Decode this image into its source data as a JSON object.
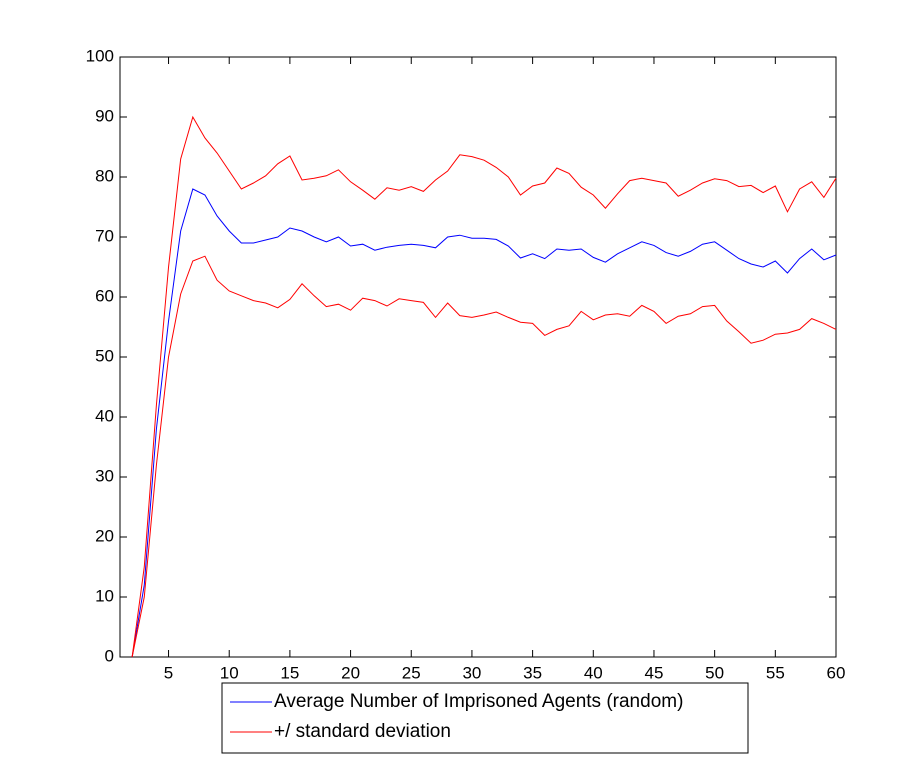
{
  "chart_data": {
    "type": "line",
    "x": [
      2,
      3,
      4,
      5,
      6,
      7,
      8,
      9,
      10,
      11,
      12,
      13,
      14,
      15,
      16,
      17,
      18,
      19,
      20,
      21,
      22,
      23,
      24,
      25,
      26,
      27,
      28,
      29,
      30,
      31,
      32,
      33,
      34,
      35,
      36,
      37,
      38,
      39,
      40,
      41,
      42,
      43,
      44,
      45,
      46,
      47,
      48,
      49,
      50,
      51,
      52,
      53,
      54,
      55,
      56,
      57,
      58,
      59,
      60
    ],
    "series": [
      {
        "name": "Average Number of Imprisoned Agents (random)",
        "color": "#0000ff",
        "values": [
          0,
          12,
          38,
          56,
          71,
          78,
          77,
          73.5,
          71,
          69,
          69,
          69.5,
          70,
          71.5,
          71,
          70,
          69.2,
          70,
          68.5,
          68.8,
          67.8,
          68.3,
          68.6,
          68.8,
          68.6,
          68.2,
          70,
          70.3,
          69.8,
          69.8,
          69.6,
          68.5,
          66.5,
          67.2,
          66.4,
          68,
          67.8,
          68,
          66.6,
          65.8,
          67.2,
          68.2,
          69.2,
          68.6,
          67.4,
          66.8,
          67.6,
          68.8,
          69.2,
          67.8,
          66.4,
          65.5,
          65,
          66,
          64,
          66.4,
          68,
          66.2,
          67
        ]
      },
      {
        "name": "+/  standard deviation",
        "color": "#ff0000",
        "upper": [
          0,
          15,
          42,
          65,
          83,
          90,
          86.5,
          84,
          81,
          78,
          79,
          80.2,
          82.2,
          83.5,
          79.5,
          79.8,
          80.2,
          81.2,
          79.2,
          77.8,
          76.3,
          78.2,
          77.8,
          78.4,
          77.6,
          79.5,
          81,
          83.7,
          83.4,
          82.8,
          81.6,
          80,
          77,
          78.5,
          79,
          81.5,
          80.6,
          78.3,
          77,
          74.8,
          77.2,
          79.4,
          79.8,
          79.4,
          79,
          76.8,
          77.8,
          79,
          79.7,
          79.4,
          78.4,
          78.6,
          77.4,
          78.5,
          74.2,
          78,
          79.2,
          76.6,
          79.8
        ],
        "lower": [
          0,
          10,
          32,
          50,
          60.5,
          66,
          66.8,
          62.8,
          61,
          60.2,
          59.4,
          59,
          58.2,
          59.6,
          62.2,
          60.2,
          58.4,
          58.8,
          57.8,
          59.8,
          59.4,
          58.5,
          59.7,
          59.4,
          59.1,
          56.6,
          59,
          56.9,
          56.6,
          57,
          57.5,
          56.6,
          55.8,
          55.6,
          53.6,
          54.6,
          55.2,
          57.6,
          56.2,
          57,
          57.2,
          56.8,
          58.6,
          57.6,
          55.6,
          56.8,
          57.2,
          58.4,
          58.6,
          56,
          54.2,
          52.3,
          52.8,
          53.8,
          54,
          54.6,
          56.4,
          55.6,
          54.6
        ]
      }
    ],
    "xlim": [
      1,
      60
    ],
    "xticks": [
      5,
      10,
      15,
      20,
      25,
      30,
      35,
      40,
      45,
      50,
      55,
      60
    ],
    "ylim": [
      0,
      100
    ],
    "yticks": [
      0,
      10,
      20,
      30,
      40,
      50,
      60,
      70,
      80,
      90,
      100
    ],
    "grid": false,
    "legend": "below"
  }
}
